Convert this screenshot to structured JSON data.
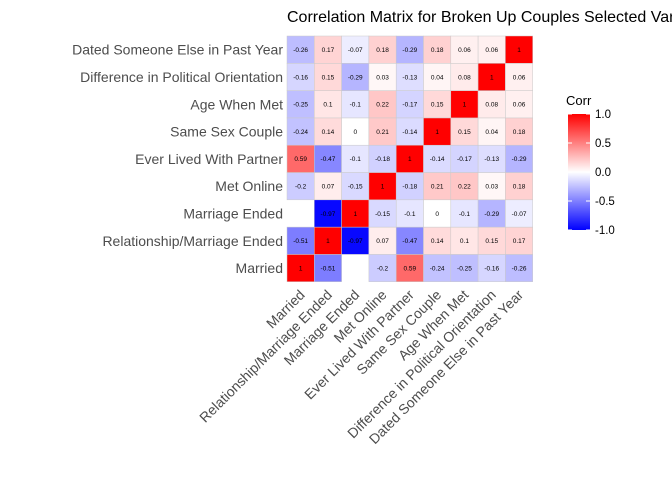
{
  "chart_data": {
    "type": "heatmap",
    "title": "Correlation Matrix for Broken Up Couples Selected Variables",
    "variables": [
      "Married",
      "Relationship/Marriage Ended",
      "Marriage Ended",
      "Met Online",
      "Ever Lived With Partner",
      "Same Sex Couple",
      "Age When Met",
      "Difference in Political Orientation",
      "Dated Someone Else in Past Year"
    ],
    "matrix": [
      [
        1,
        -0.51,
        null,
        -0.2,
        0.59,
        -0.24,
        -0.25,
        -0.16,
        -0.26
      ],
      [
        -0.51,
        1,
        -0.97,
        0.07,
        -0.47,
        0.14,
        0.1,
        0.15,
        0.17
      ],
      [
        null,
        -0.97,
        1,
        -0.15,
        -0.1,
        0,
        -0.1,
        -0.29,
        -0.07
      ],
      [
        -0.2,
        0.07,
        -0.15,
        1,
        -0.18,
        0.21,
        0.22,
        0.03,
        0.18
      ],
      [
        0.59,
        -0.47,
        -0.1,
        -0.18,
        1,
        -0.14,
        -0.17,
        -0.13,
        -0.29
      ],
      [
        -0.24,
        0.14,
        0,
        0.21,
        -0.14,
        1,
        0.15,
        0.04,
        0.18
      ],
      [
        -0.25,
        0.1,
        -0.1,
        0.22,
        -0.17,
        0.15,
        1,
        0.08,
        0.06
      ],
      [
        -0.16,
        0.15,
        -0.29,
        0.03,
        -0.13,
        0.04,
        0.08,
        1,
        0.06
      ],
      [
        -0.26,
        0.17,
        -0.07,
        0.18,
        -0.29,
        0.18,
        0.06,
        0.06,
        1
      ]
    ],
    "colorscale": {
      "low": "#0000ff",
      "mid": "#ffffff",
      "high": "#ff0000",
      "range": [
        -1,
        1
      ]
    },
    "legend": {
      "title": "Corr",
      "ticks": [
        "1.0",
        "0.5",
        "0.0",
        "-0.5",
        "-1.0"
      ],
      "tick_values": [
        1,
        0.5,
        0,
        -0.5,
        -1
      ],
      "placement": "right"
    },
    "grid": false
  }
}
